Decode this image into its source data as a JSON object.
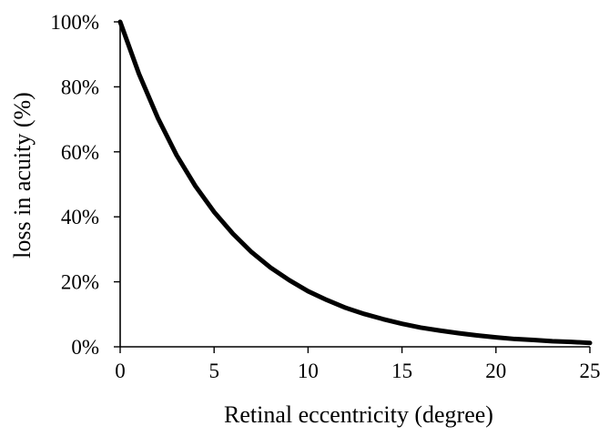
{
  "chart_data": {
    "type": "line",
    "title": "",
    "xlabel": "Retinal eccentricity (degree)",
    "ylabel": "loss in acuity (%)",
    "xlim": [
      0,
      25
    ],
    "ylim": [
      0,
      100
    ],
    "x_ticks": [
      0,
      5,
      10,
      15,
      20,
      25
    ],
    "y_ticks": [
      0,
      20,
      40,
      60,
      80,
      100
    ],
    "x_tick_labels": [
      "0",
      "5",
      "10",
      "15",
      "20",
      "25"
    ],
    "y_tick_labels": [
      "0%",
      "20%",
      "40%",
      "60%",
      "80%",
      "100%"
    ],
    "grid": false,
    "legend": "none",
    "series": [
      {
        "values_x": [
          0,
          1,
          2,
          3,
          4,
          5,
          6,
          7,
          8,
          9,
          10,
          11,
          12,
          13,
          14,
          15,
          16,
          17,
          18,
          19,
          20,
          21,
          22,
          23,
          24,
          25
        ],
        "values_y": [
          100,
          84,
          70.5,
          59,
          49.5,
          41.5,
          34.8,
          29.1,
          24.4,
          20.5,
          17.1,
          14.4,
          12,
          10.1,
          8.5,
          7.1,
          5.9,
          5,
          4.2,
          3.5,
          2.9,
          2.4,
          2.1,
          1.7,
          1.5,
          1.2
        ]
      }
    ],
    "line_color": "#000000"
  }
}
